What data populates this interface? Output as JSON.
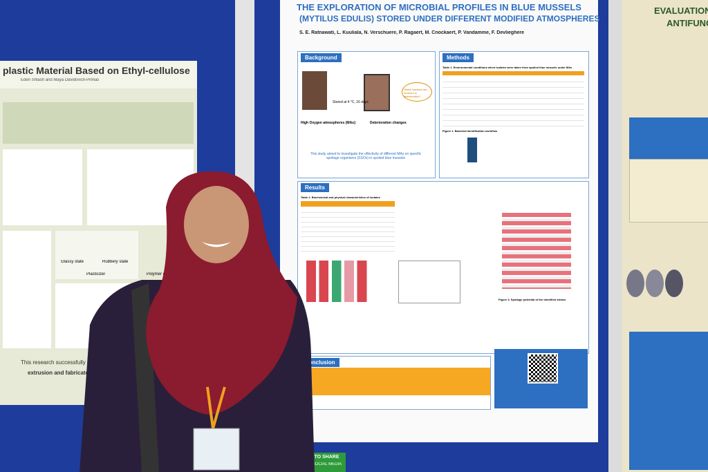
{
  "left_poster": {
    "title": "plastic Material Based on Ethyl-cellulose",
    "authors": "Eden Shlash and Maya Davidovich-Pinhas",
    "labels": [
      "Glassy state",
      "Rubbery state",
      "Plasticizer",
      "Polymer chain"
    ],
    "footer": [
      "This research successfully demon",
      "extrusion and fabricate bioplastics"
    ]
  },
  "center_poster": {
    "title_line_1": "THE EXPLORATION OF MICROBIAL PROFILES IN BLUE MUSSELS",
    "title_line_2": "(MYTILUS EDULIS) STORED UNDER DIFFERENT MODIFIED ATMOSPHERES",
    "authors": "S. E. Ratnawati, L. Kuuliala, N. Verschuere, P. Ragaert, M. Cnockaert, P. Vandamme, F. Devlieghere",
    "background": {
      "heading": "Background",
      "storage": "Stored at 4 °C, 16 days",
      "question": "Which bacteria are involved in deterioration?",
      "atmospheres": "High Oxygen atmospheres (MAs):",
      "changes": "Deterioration changes",
      "aim": "This study aimed to investigate the effectivity of different MAs on specific spoilage organisms (SSOs) in spoiled blue mussels"
    },
    "methods": {
      "heading": "Methods",
      "table_caption": "Table 1. Environmental conditions when isolates were taken from spoiled blue mussels under MAs",
      "figure_caption": "Figure 1. Bacterial identification workflow"
    },
    "results": {
      "heading": "Results",
      "table_caption": "Table 2. Biochemical and physical characteristics of isolates",
      "figure_caption": "Figure 3. Spoilage potential of the identified strains"
    },
    "conclusion": {
      "heading": "Conclusion"
    }
  },
  "right_poster": {
    "title_line_1": "EVALUATION OF DI",
    "title_line_2": "ANTIFUNG"
  },
  "badge": {
    "line_1": "OK TO SHARE",
    "line_2": "ON SOCIAL MEDIA"
  }
}
